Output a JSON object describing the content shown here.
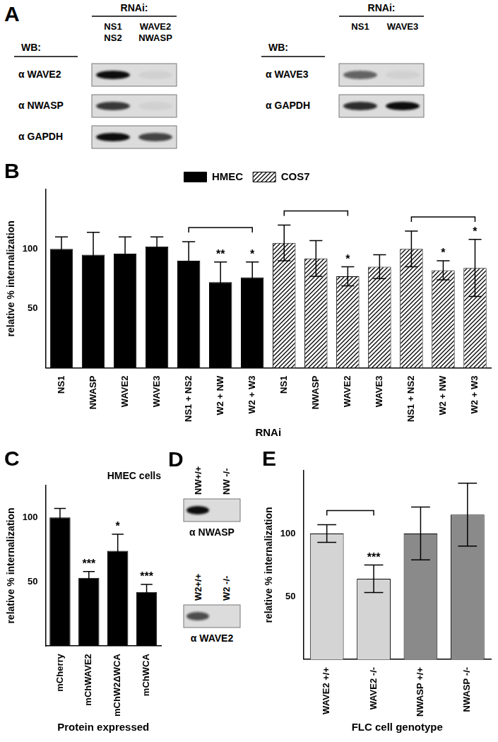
{
  "blots": [
    {
      "panel": "A",
      "row_header": "WB:",
      "column_header": "RNAi:",
      "columns": [
        [
          "NS1",
          "NS2"
        ],
        [
          "WAVE2",
          "NWASP"
        ]
      ],
      "rows": [
        {
          "label": "α WAVE2",
          "signal": [
            1,
            0.05
          ]
        },
        {
          "label": "α NWASP",
          "signal": [
            0.8,
            0.05
          ]
        },
        {
          "label": "α GAPDH",
          "signal": [
            1,
            0.75
          ]
        }
      ]
    },
    {
      "row_header": "WB:",
      "column_header": "RNAi:",
      "columns": [
        [
          "NS1"
        ],
        [
          "WAVE3"
        ]
      ],
      "rows": [
        {
          "label": "α WAVE3",
          "signal": [
            0.6,
            0.05
          ]
        },
        {
          "label": "α GAPDH",
          "signal": [
            0.85,
            1
          ]
        }
      ]
    },
    {
      "panel": "D",
      "columns": [
        [
          "NW+/+"
        ],
        [
          "NW -/-"
        ]
      ],
      "rows": [
        {
          "label": "α NWASP",
          "signal": [
            1,
            0
          ]
        }
      ]
    },
    {
      "columns": [
        [
          "W2+/+"
        ],
        [
          "W2 -/-"
        ]
      ],
      "rows": [
        {
          "label": "α WAVE2",
          "signal": [
            0.7,
            0
          ]
        }
      ]
    }
  ],
  "chart_data": [
    {
      "panel": "B",
      "type": "bar",
      "y_label": "relative % internalization",
      "x_label": "RNAi",
      "categories": [
        "NS1",
        "NWASP",
        "WAVE2",
        "WAVE3",
        "NS1 + NS2",
        "W2 + NW",
        "W2 + W3",
        "NS1",
        "NWASP",
        "WAVE2",
        "WAVE3",
        "NS1 + NS2",
        "W2 + NW",
        "W2 + W3"
      ],
      "series": [
        {
          "name": "HMEC",
          "color": "#000000",
          "values": [
            100,
            95,
            96,
            102,
            90,
            72,
            76,
            null,
            null,
            null,
            null,
            null,
            null,
            null
          ],
          "error": [
            10,
            19,
            14,
            8,
            16,
            17,
            13,
            null,
            null,
            null,
            null,
            null,
            null,
            null
          ]
        },
        {
          "name": "COS7",
          "color": "#000000",
          "values": [
            null,
            null,
            null,
            null,
            null,
            null,
            null,
            105,
            92,
            77,
            85,
            100,
            82,
            84
          ],
          "error": [
            null,
            null,
            null,
            null,
            null,
            null,
            null,
            15,
            15,
            8,
            10,
            15,
            8,
            24
          ]
        }
      ],
      "ylim": [
        0,
        150
      ],
      "yticks": [
        50,
        100
      ],
      "grid": false,
      "legend": "top",
      "annotations": [
        {
          "bracket": [
            4,
            6
          ],
          "marks": [
            {
              "at": 5,
              "label": "**"
            },
            {
              "at": 6,
              "label": "*"
            }
          ]
        },
        {
          "bracket": [
            7,
            9
          ],
          "marks": [
            {
              "at": 9,
              "label": "*"
            }
          ]
        },
        {
          "bracket": [
            11,
            13
          ],
          "marks": [
            {
              "at": 12,
              "label": "*"
            },
            {
              "at": 13,
              "label": "*"
            }
          ]
        }
      ]
    },
    {
      "panel": "C",
      "type": "bar",
      "title": "HMEC cells",
      "y_label": "relative % internalization",
      "x_label": "Protein expressed",
      "categories": [
        "mCherry",
        "mChWAVE2",
        "mChW2ΔWCA",
        "mChWCA"
      ],
      "values": [
        100,
        53,
        74,
        42
      ],
      "error": [
        7,
        5,
        13,
        6
      ],
      "color": "#000000",
      "ylim": [
        0,
        125
      ],
      "yticks": [
        50,
        100
      ],
      "grid": false,
      "annotations": [
        {
          "marks": [
            {
              "at": 1,
              "label": "***"
            },
            {
              "at": 2,
              "label": "*"
            },
            {
              "at": 3,
              "label": "***"
            }
          ]
        }
      ]
    },
    {
      "panel": "E",
      "type": "bar",
      "y_label": "relative % internalization",
      "x_label": "FLC cell genotype",
      "categories": [
        "WAVE2 +/+",
        "WAVE2 -/-",
        "NWASP +/+",
        "NWASP -/-"
      ],
      "values": [
        100,
        64,
        100,
        115
      ],
      "error": [
        7,
        11,
        21,
        25
      ],
      "colors": [
        "#d4d4d4",
        "#d4d4d4",
        "#8a8a8a",
        "#8a8a8a"
      ],
      "ylim": [
        0,
        150
      ],
      "yticks": [
        50,
        100
      ],
      "grid": false,
      "annotations": [
        {
          "bracket": [
            0,
            1
          ],
          "marks": [
            {
              "at": 1,
              "label": "***"
            }
          ]
        }
      ]
    }
  ]
}
